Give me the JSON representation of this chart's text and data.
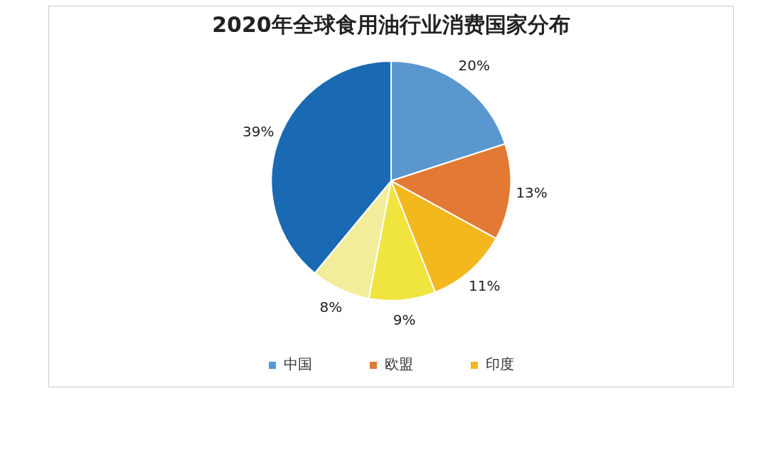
{
  "chart_data": {
    "type": "pie",
    "title": "2020年全球食用油行业消费国家分布",
    "categories": [
      "中国",
      "欧盟",
      "印度",
      null,
      null,
      null
    ],
    "values": [
      20,
      13,
      11,
      9,
      8,
      39
    ],
    "value_labels": [
      "20%",
      "13%",
      "11%",
      "9%",
      "8%",
      "39%"
    ],
    "colors": [
      "#5b97cf",
      "#e27a35",
      "#f2b81e",
      "#f0e43f",
      "#f2ed9a",
      "#1a69b3"
    ],
    "legend": "bottom"
  }
}
